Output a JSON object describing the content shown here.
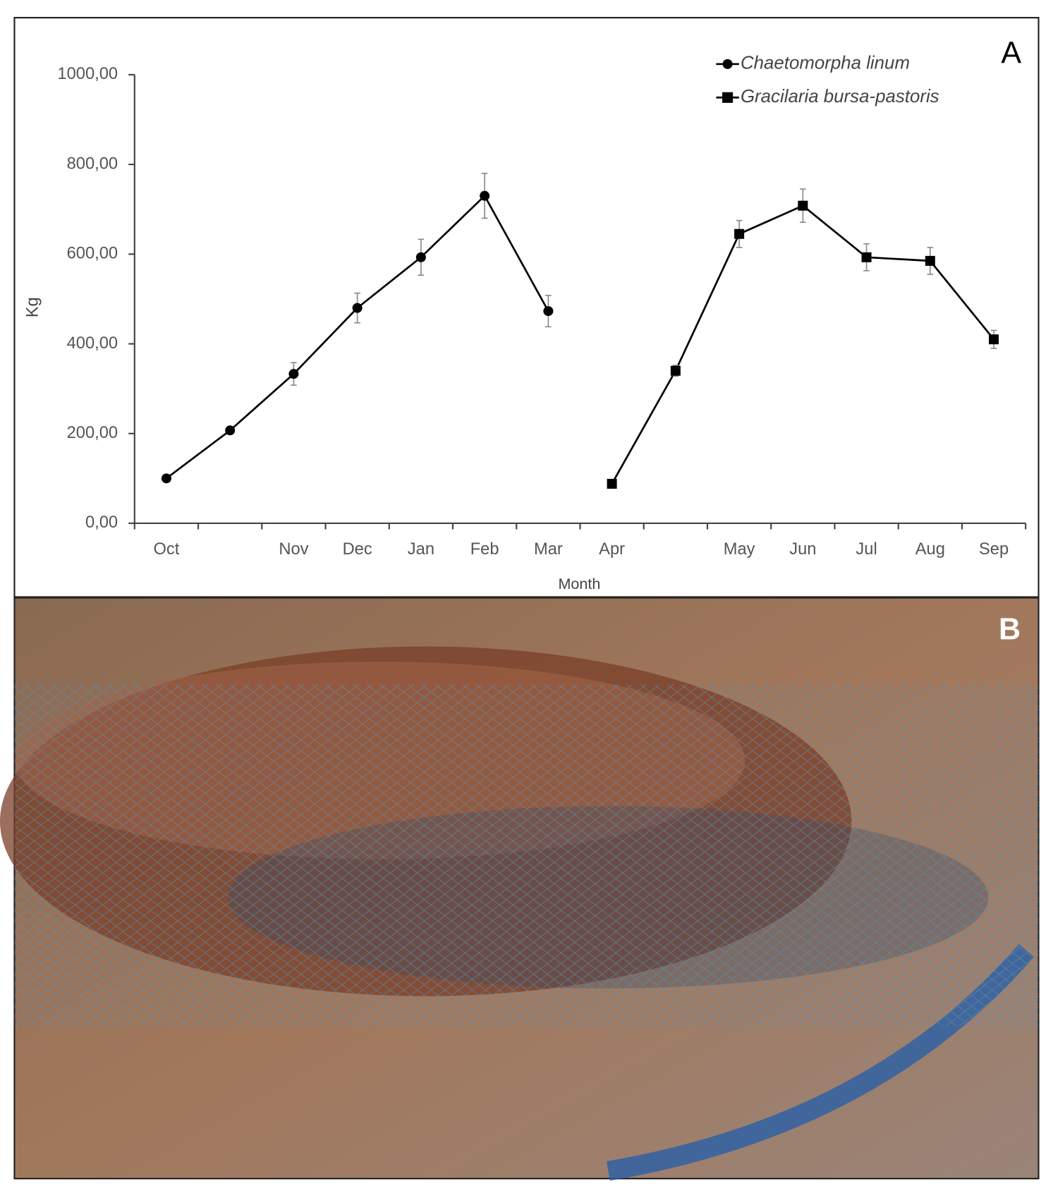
{
  "chart_data": {
    "type": "line",
    "panel_label": "A",
    "photo_label": "B",
    "y_label": "Kg",
    "x_label": "Month",
    "categories": [
      "Oct",
      null,
      "Nov",
      "Dec",
      "Jan",
      "Feb",
      "Mar",
      "Apr",
      null,
      "May",
      "Jun",
      "Jul",
      "Aug",
      "Sep"
    ],
    "series": [
      {
        "name": "Chaetomorpha linum",
        "color": "#000000",
        "marker": "circle",
        "values": [
          100,
          207,
          333,
          480,
          593,
          730,
          473,
          null,
          null,
          null,
          null,
          null,
          null,
          null
        ],
        "errors": [
          5,
          8,
          25,
          33,
          40,
          50,
          35,
          null,
          null,
          null,
          null,
          null,
          null,
          null
        ]
      },
      {
        "name": "Gracilaria bursa-pastoris",
        "color": "#000000",
        "marker": "square",
        "values": [
          null,
          null,
          null,
          null,
          null,
          null,
          null,
          88,
          340,
          645,
          708,
          593,
          585,
          410
        ],
        "errors": [
          null,
          null,
          null,
          null,
          null,
          null,
          null,
          5,
          12,
          30,
          37,
          30,
          30,
          20
        ]
      }
    ],
    "ylim": [
      0,
      1000
    ],
    "yticks": [
      {
        "value": 0,
        "label": "0,00"
      },
      {
        "value": 200,
        "label": "200,00"
      },
      {
        "value": 400,
        "label": "400,00"
      },
      {
        "value": 600,
        "label": "600,00"
      },
      {
        "value": 800,
        "label": "800,00"
      },
      {
        "value": 1000,
        "label": "1000,00"
      }
    ],
    "legend": "top-right",
    "grid": false
  }
}
